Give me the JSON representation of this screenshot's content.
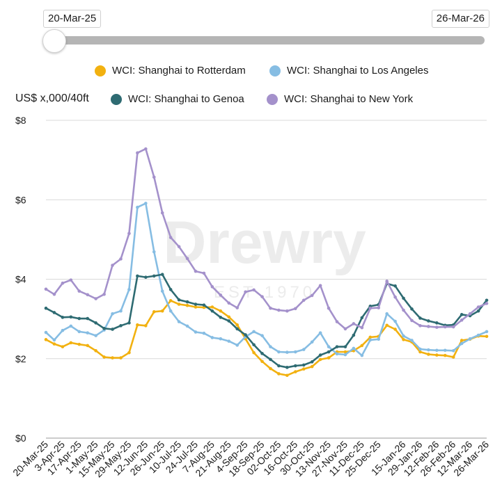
{
  "range": {
    "start": "20-Mar-25",
    "end": "26-Mar-26"
  },
  "unit_label": "US$ x,000/40ft",
  "watermark": {
    "name": "Drewry",
    "sub": "EST 1970"
  },
  "legend": [
    {
      "label": "WCI: Shanghai to Rotterdam",
      "color": "#f2b110"
    },
    {
      "label": "WCI: Shanghai to Los Angeles",
      "color": "#86bde3"
    },
    {
      "label": "WCI: Shanghai to Genoa",
      "color": "#2e6b72"
    },
    {
      "label": "WCI: Shanghai to New York",
      "color": "#a491cb"
    }
  ],
  "chart_data": {
    "type": "line",
    "ylabel": "US$ x,000/40ft",
    "ylim": [
      0,
      8
    ],
    "yticks": [
      "$0",
      "$2",
      "$4",
      "$6",
      "$8"
    ],
    "grid": true,
    "legend_position": "top",
    "x": [
      "20-Mar-25",
      "27-Mar-25",
      "3-Apr-25",
      "10-Apr-25",
      "17-Apr-25",
      "24-Apr-25",
      "1-May-25",
      "8-May-25",
      "15-May-25",
      "22-May-25",
      "29-May-25",
      "5-Jun-25",
      "12-Jun-25",
      "19-Jun-25",
      "26-Jun-25",
      "3-Jul-25",
      "10-Jul-25",
      "17-Jul-25",
      "24-Jul-25",
      "31-Jul-25",
      "7-Aug-25",
      "14-Aug-25",
      "21-Aug-25",
      "28-Aug-25",
      "4-Sep-25",
      "11-Sep-25",
      "18-Sep-25",
      "25-Sep-25",
      "02-Oct-25",
      "09-Oct-25",
      "16-Oct-25",
      "23-Oct-25",
      "30-Oct-25",
      "6-Nov-25",
      "13-Nov-25",
      "20-Nov-25",
      "27-Nov-25",
      "4-Dec-25",
      "11-Dec-25",
      "18-Dec-25",
      "25-Dec-25",
      "1-Jan-26",
      "8-Jan-26",
      "15-Jan-26",
      "22-Jan-26",
      "29-Jan-26",
      "5-Feb-26",
      "12-Feb-26",
      "19-Feb-26",
      "26-Feb-26",
      "5-Mar-26",
      "12-Mar-26",
      "19-Mar-26",
      "26-Mar-26"
    ],
    "xtick_labels": [
      "20-Mar-25",
      "3-Apr-25",
      "17-Apr-25",
      "1-May-25",
      "15-May-25",
      "29-May-25",
      "12-Jun-25",
      "26-Jun-25",
      "10-Jul-25",
      "24-Jul-25",
      "7-Aug-25",
      "21-Aug-25",
      "4-Sep-25",
      "18-Sep-25",
      "02-Oct-25",
      "16-Oct-25",
      "30-Oct-25",
      "13-Nov-25",
      "27-Nov-25",
      "11-Dec-25",
      "25-Dec-25",
      "15-Jan-26",
      "29-Jan-26",
      "12-Feb-26",
      "26-Feb-26",
      "12-Mar-26",
      "26-Mar-26"
    ],
    "series": [
      {
        "name": "WCI: Shanghai to Rotterdam",
        "color": "#f2b110",
        "values": [
          2.48,
          2.37,
          2.3,
          2.4,
          2.36,
          2.33,
          2.2,
          2.04,
          2.02,
          2.02,
          2.15,
          2.85,
          2.83,
          3.18,
          3.2,
          3.46,
          3.37,
          3.34,
          3.3,
          3.29,
          3.3,
          3.2,
          3.05,
          2.85,
          2.5,
          2.15,
          1.93,
          1.75,
          1.62,
          1.58,
          1.67,
          1.74,
          1.8,
          1.98,
          2.02,
          2.17,
          2.17,
          2.2,
          2.33,
          2.54,
          2.56,
          2.84,
          2.74,
          2.48,
          2.42,
          2.17,
          2.11,
          2.09,
          2.08,
          2.04,
          2.46,
          2.49,
          2.57,
          2.56
        ]
      },
      {
        "name": "WCI: Shanghai to Los Angeles",
        "color": "#86bde3",
        "values": [
          2.66,
          2.47,
          2.71,
          2.82,
          2.68,
          2.65,
          2.58,
          2.72,
          3.13,
          3.2,
          3.74,
          5.81,
          5.91,
          4.69,
          3.7,
          3.2,
          2.93,
          2.82,
          2.67,
          2.64,
          2.53,
          2.5,
          2.44,
          2.34,
          2.55,
          2.68,
          2.58,
          2.3,
          2.17,
          2.16,
          2.17,
          2.23,
          2.42,
          2.65,
          2.3,
          2.12,
          2.1,
          2.26,
          2.08,
          2.47,
          2.49,
          3.13,
          2.94,
          2.57,
          2.46,
          2.24,
          2.22,
          2.21,
          2.21,
          2.2,
          2.38,
          2.5,
          2.59,
          2.68
        ]
      },
      {
        "name": "WCI: Shanghai to Genoa",
        "color": "#2e6b72",
        "values": [
          3.27,
          3.16,
          3.04,
          3.05,
          3.01,
          3.01,
          2.9,
          2.76,
          2.74,
          2.83,
          2.9,
          4.08,
          4.05,
          4.08,
          4.12,
          3.74,
          3.48,
          3.43,
          3.37,
          3.35,
          3.2,
          3.04,
          2.95,
          2.75,
          2.6,
          2.35,
          2.13,
          1.98,
          1.82,
          1.78,
          1.82,
          1.84,
          1.92,
          2.09,
          2.17,
          2.3,
          2.3,
          2.59,
          3.03,
          3.32,
          3.36,
          3.89,
          3.83,
          3.52,
          3.25,
          3.02,
          2.95,
          2.9,
          2.84,
          2.85,
          3.11,
          3.08,
          3.2,
          3.47
        ]
      },
      {
        "name": "WCI: Shanghai to New York",
        "color": "#a491cb",
        "values": [
          3.75,
          3.62,
          3.9,
          3.98,
          3.7,
          3.61,
          3.51,
          3.62,
          4.35,
          4.51,
          5.15,
          7.18,
          7.28,
          6.57,
          5.67,
          5.05,
          4.82,
          4.52,
          4.2,
          4.15,
          3.81,
          3.6,
          3.4,
          3.28,
          3.68,
          3.73,
          3.56,
          3.27,
          3.22,
          3.2,
          3.26,
          3.47,
          3.59,
          3.84,
          3.27,
          2.93,
          2.75,
          2.88,
          2.78,
          3.27,
          3.28,
          3.95,
          3.55,
          3.22,
          2.96,
          2.83,
          2.81,
          2.79,
          2.8,
          2.8,
          2.97,
          3.13,
          3.3,
          3.39
        ]
      }
    ]
  }
}
